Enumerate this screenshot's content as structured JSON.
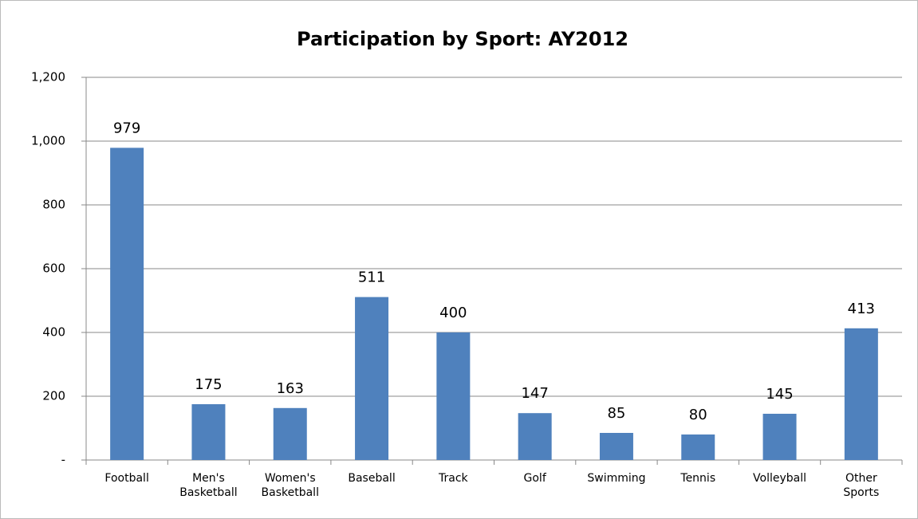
{
  "chart_data": {
    "type": "bar",
    "title": "Participation by Sport: AY2012",
    "categories": [
      "Football",
      "Men's Basketball",
      "Women's Basketball",
      "Baseball",
      "Track",
      "Golf",
      "Swimming",
      "Tennis",
      "Volleyball",
      "Other Sports"
    ],
    "values": [
      979,
      175,
      163,
      511,
      400,
      147,
      85,
      80,
      145,
      413
    ],
    "color": "#4f81bd",
    "ylim": [
      0,
      1200
    ],
    "yticks": [
      {
        "value": 0,
        "label": "-"
      },
      200,
      400,
      600,
      800,
      {
        "value": 1000,
        "label": "1,000"
      },
      {
        "value": 1200,
        "label": "1,200"
      }
    ],
    "grid": true
  }
}
